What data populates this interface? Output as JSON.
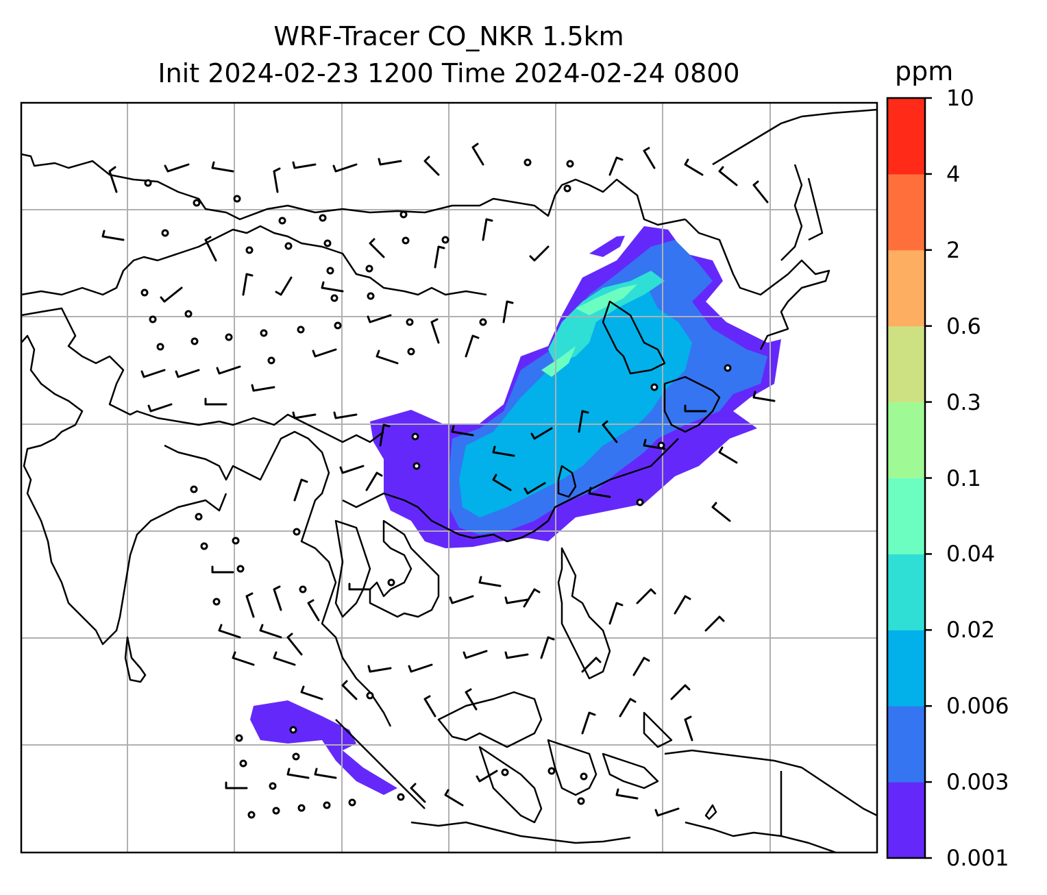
{
  "title": {
    "line1": "WRF-Tracer CO_NKR 1.5km",
    "line2": "Init 2024-02-23 1200 Time 2024-02-24 0800"
  },
  "colorbar": {
    "unit": "ppm",
    "levels": [
      "0.001",
      "0.003",
      "0.006",
      "0.02",
      "0.04",
      "0.1",
      "0.3",
      "0.6",
      "2",
      "4",
      "10"
    ],
    "colors": [
      "#6429fa",
      "#3575f1",
      "#02b1ea",
      "#2fdfd6",
      "#6cfec1",
      "#9ffa95",
      "#cde182",
      "#feae61",
      "#ff6f3c",
      "#ff2a17"
    ]
  },
  "map": {
    "frame_color": "#000000",
    "grid_color": "#b0b0b0",
    "coastline_color": "#000000",
    "wind_barbs": "black"
  }
}
